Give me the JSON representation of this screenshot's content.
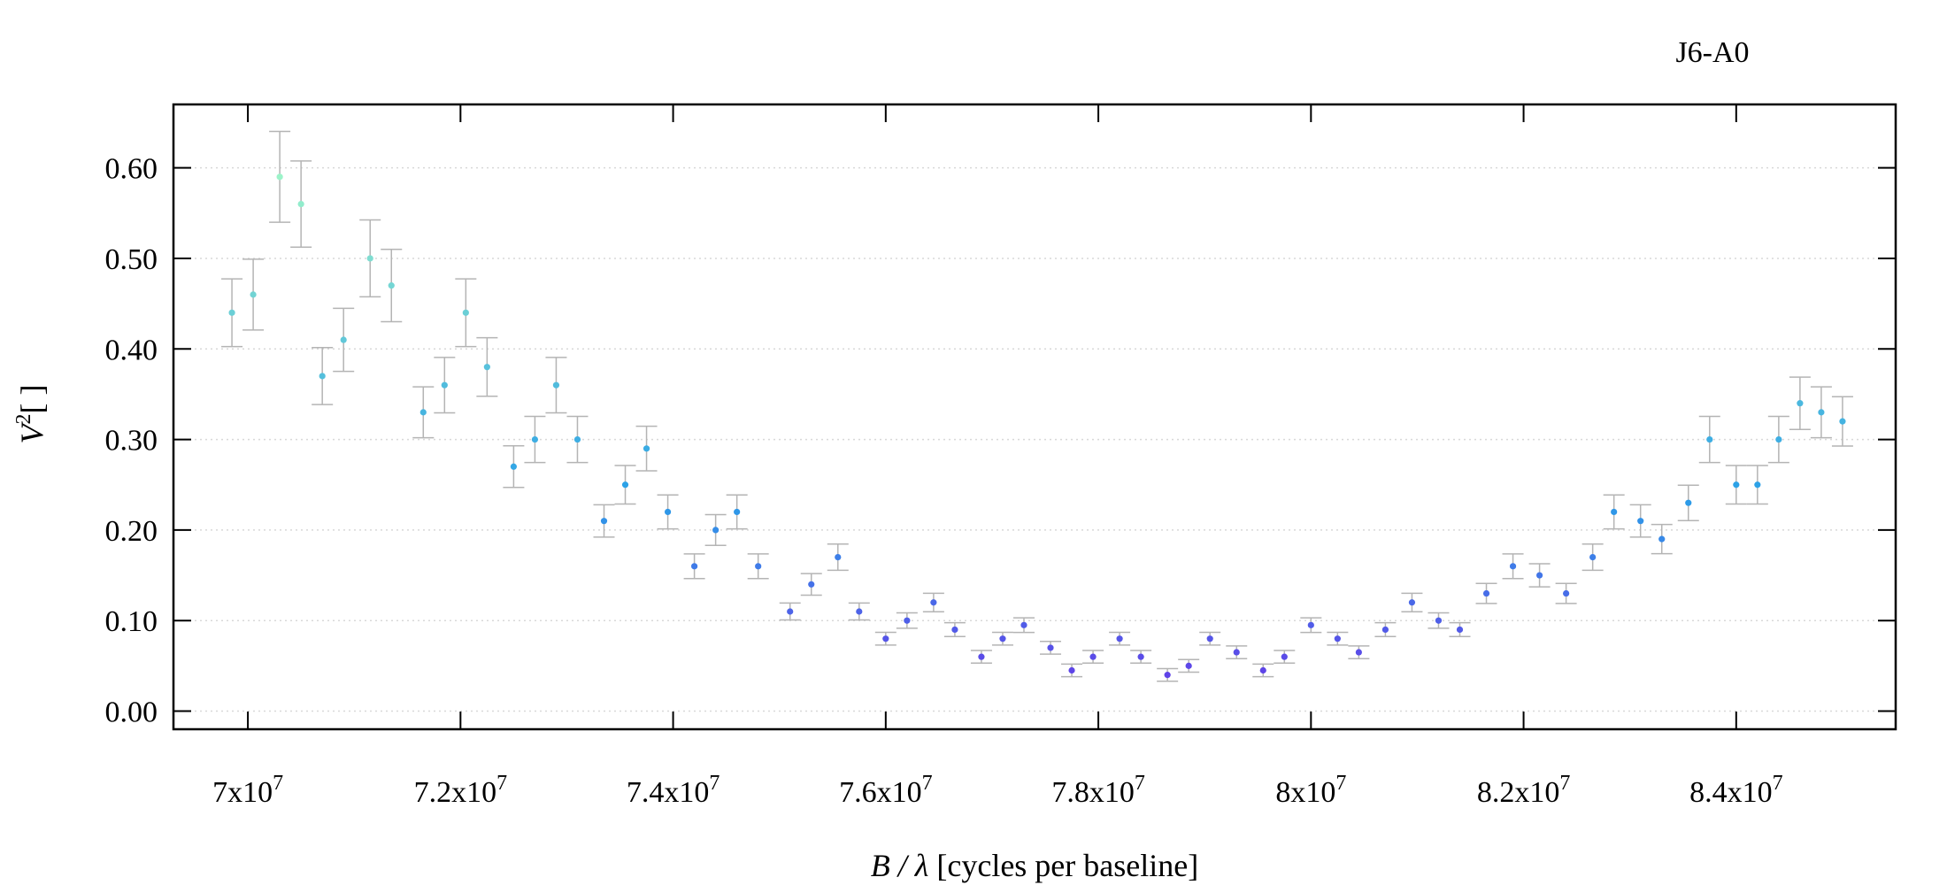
{
  "chart_data": {
    "type": "scatter",
    "title": "J6-A0",
    "xlabel": {
      "var": "B / λ",
      "rest": "[cycles per baseline]"
    },
    "ylabel": {
      "var": "V",
      "sup": "2",
      "rest": "[ ]"
    },
    "xlim": [
      69300000,
      85500000
    ],
    "ylim": [
      -0.02,
      0.67
    ],
    "x_ticks": [
      70000000,
      72000000,
      74000000,
      76000000,
      78000000,
      80000000,
      82000000,
      84000000
    ],
    "x_tick_labels": [
      {
        "base": "7x10",
        "exp": "7"
      },
      {
        "base": "7.2x10",
        "exp": "7"
      },
      {
        "base": "7.4x10",
        "exp": "7"
      },
      {
        "base": "7.6x10",
        "exp": "7"
      },
      {
        "base": "7.8x10",
        "exp": "7"
      },
      {
        "base": "8x10",
        "exp": "7"
      },
      {
        "base": "8.2x10",
        "exp": "7"
      },
      {
        "base": "8.4x10",
        "exp": "7"
      }
    ],
    "y_ticks": [
      0.0,
      0.1,
      0.2,
      0.3,
      0.4,
      0.5,
      0.6
    ],
    "y_tick_labels": [
      "0.00",
      "0.10",
      "0.20",
      "0.30",
      "0.40",
      "0.50",
      "0.60"
    ],
    "grid": "horizontal dotted",
    "legend": "none",
    "colors": {
      "errorbar": "#b4b4b4",
      "grid": "#d8d8d8",
      "high": "#9ff5c8",
      "mid": "#2aa0e8",
      "low": "#6a30e8"
    },
    "series": [
      {
        "x": [
          69850000,
          70050000,
          70300000,
          70500000,
          70700000,
          70900000,
          71150000,
          71350000,
          71650000,
          71850000,
          72050000,
          72250000,
          72500000,
          72700000,
          72900000,
          73100000,
          73350000,
          73550000,
          73750000,
          73950000,
          74200000,
          74400000,
          74600000,
          74800000,
          75100000,
          75300000,
          75550000,
          75750000,
          76000000,
          76200000,
          76450000,
          76650000,
          76900000,
          77100000,
          77300000,
          77550000,
          77750000,
          77950000,
          78200000,
          78400000,
          78650000,
          78850000,
          79050000,
          79300000,
          79550000,
          79750000,
          80000000,
          80250000,
          80450000,
          80700000,
          80950000,
          81200000,
          81400000,
          81650000,
          81900000,
          82150000,
          82400000,
          82650000,
          82850000,
          83100000,
          83300000,
          83550000,
          83750000,
          84000000,
          84200000,
          84400000,
          84600000,
          84800000,
          85000000
        ],
        "y": [
          0.44,
          0.46,
          0.59,
          0.56,
          0.37,
          0.41,
          0.5,
          0.47,
          0.33,
          0.36,
          0.44,
          0.38,
          0.27,
          0.3,
          0.36,
          0.3,
          0.21,
          0.25,
          0.29,
          0.22,
          0.16,
          0.2,
          0.22,
          0.16,
          0.11,
          0.14,
          0.17,
          0.11,
          0.08,
          0.1,
          0.12,
          0.09,
          0.06,
          0.08,
          0.095,
          0.07,
          0.045,
          0.06,
          0.08,
          0.06,
          0.04,
          0.05,
          0.08,
          0.065,
          0.045,
          0.06,
          0.095,
          0.08,
          0.065,
          0.09,
          0.12,
          0.1,
          0.09,
          0.13,
          0.16,
          0.15,
          0.13,
          0.17,
          0.22,
          0.21,
          0.19,
          0.23,
          0.3,
          0.25,
          0.25,
          0.3,
          0.34,
          0.33,
          0.32
        ]
      }
    ]
  }
}
